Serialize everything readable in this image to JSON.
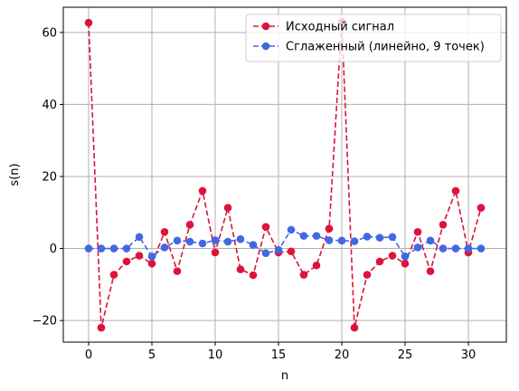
{
  "chart_data": {
    "type": "line",
    "title": "",
    "xlabel": "n",
    "ylabel": "s(n)",
    "xlim": [
      -2,
      33
    ],
    "ylim": [
      -26,
      67
    ],
    "xticks": [
      0,
      5,
      10,
      15,
      20,
      25,
      30
    ],
    "yticks": [
      -20,
      0,
      20,
      40,
      60
    ],
    "ytick_labels": [
      "−20",
      "0",
      "20",
      "40",
      "60"
    ],
    "grid": true,
    "legend_position": "top-right",
    "series": [
      {
        "name": "Исходный сигнал",
        "color": "#dc143c",
        "line_style": "dashed",
        "marker": "circle",
        "x": [
          0,
          1,
          2,
          3,
          4,
          5,
          6,
          7,
          8,
          9,
          10,
          11,
          12,
          13,
          14,
          15,
          16,
          17,
          18,
          19,
          20,
          21,
          22,
          23,
          24,
          25,
          26,
          27,
          28,
          29,
          30,
          31
        ],
        "y": [
          62.7,
          -22.0,
          -7.3,
          -3.6,
          -2.0,
          -4.2,
          4.6,
          -6.3,
          6.6,
          16.0,
          -1.1,
          11.3,
          -5.8,
          -7.4,
          6.0,
          -1.1,
          -0.8,
          -7.3,
          -4.7,
          5.5,
          63.0,
          -22.0,
          -7.3,
          -3.6,
          -2.0,
          -4.2,
          4.6,
          -6.3,
          6.6,
          16.0,
          -1.1,
          11.3
        ]
      },
      {
        "name": "Сглаженный (линейно, 9 точек)",
        "color": "#4169e1",
        "line_style": "dashed",
        "marker": "circle",
        "x": [
          0,
          1,
          2,
          3,
          4,
          5,
          6,
          7,
          8,
          9,
          10,
          11,
          12,
          13,
          14,
          15,
          16,
          17,
          18,
          19,
          20,
          21,
          22,
          23,
          24,
          25,
          26,
          27,
          28,
          29,
          30,
          31
        ],
        "y": [
          0,
          0,
          0,
          0,
          3.2,
          -2.2,
          0.3,
          2.2,
          1.9,
          1.4,
          2.3,
          1.9,
          2.6,
          1.0,
          -1.3,
          -0.4,
          5.2,
          3.5,
          3.5,
          2.3,
          2.2,
          2.0,
          3.3,
          3.0,
          3.2,
          -2.2,
          0.3,
          2.2,
          0,
          0,
          0,
          0
        ]
      }
    ]
  }
}
